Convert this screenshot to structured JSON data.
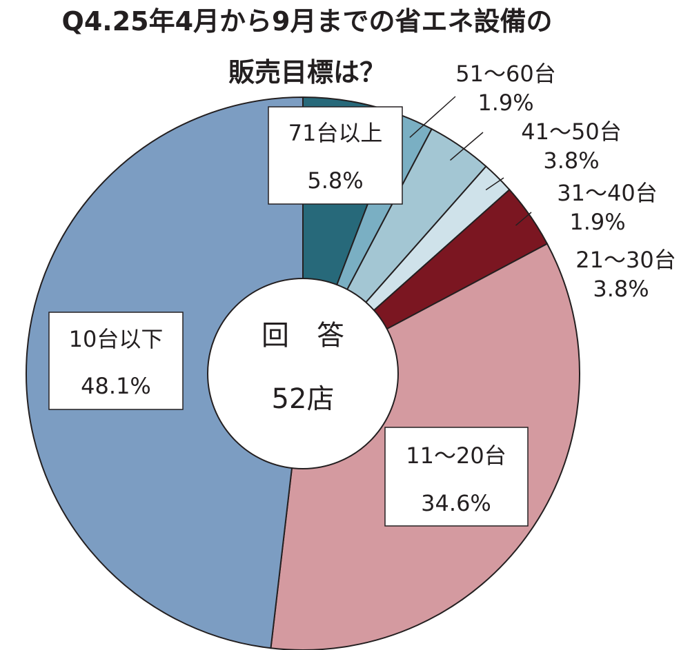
{
  "chart_data": {
    "type": "pie",
    "title_line1": "Q4.25年4月から9月までの省エネ設備の",
    "title_line2": "販売目標は？",
    "center_line1": "回　答",
    "center_line2": "52店",
    "slices": [
      {
        "label": "71台以上",
        "value": 5.8,
        "value_label": "5.8%",
        "color": "#27697a"
      },
      {
        "label": "51～60台",
        "value": 1.9,
        "value_label": "1.9%",
        "color": "#7aafc3"
      },
      {
        "label": "41～50台",
        "value": 3.8,
        "value_label": "3.8%",
        "color": "#a3c6d3"
      },
      {
        "label": "31～40台",
        "value": 1.9,
        "value_label": "1.9%",
        "color": "#cfe2ea"
      },
      {
        "label": "21～30台",
        "value": 3.8,
        "value_label": "3.8%",
        "color": "#7b1621"
      },
      {
        "label": "11～20台",
        "value": 34.6,
        "value_label": "34.6%",
        "color": "#d49aa0"
      },
      {
        "label": "10台以下",
        "value": 48.1,
        "value_label": "48.1%",
        "color": "#7c9dc2"
      }
    ]
  }
}
